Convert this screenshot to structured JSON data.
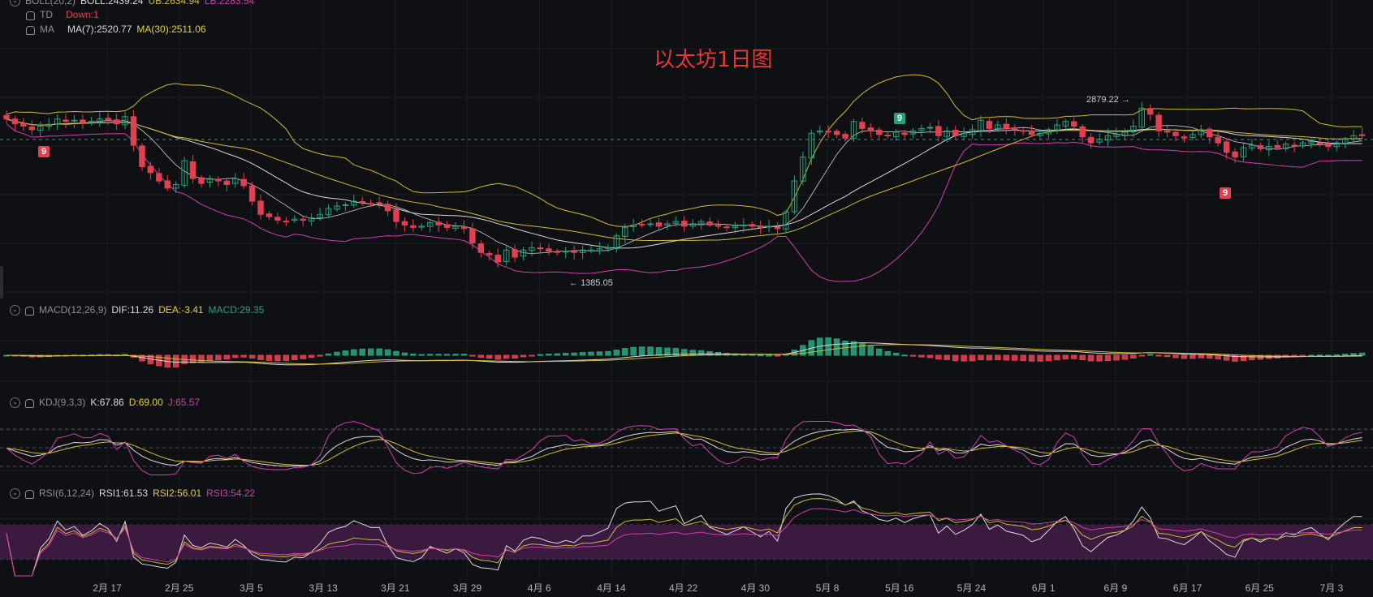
{
  "title": "以太坊1日图",
  "legends": {
    "boll": {
      "name": "BOLL(20,2)",
      "boll": "BOLL:2439.24",
      "ub": "UB:2634.94",
      "lb": "LB:2283.54"
    },
    "td": {
      "name": "TD",
      "down": "Down:1"
    },
    "ma": {
      "name": "MA",
      "ma7": "MA(7):2520.77",
      "ma30": "MA(30):2511.06"
    },
    "macd": {
      "name": "MACD(12,26,9)",
      "dif": "DIF:11.26",
      "dea": "DEA:-3.41",
      "macd": "MACD:29.35"
    },
    "kdj": {
      "name": "KDJ(9,3,3)",
      "k": "K:67.86",
      "d": "D:69.00",
      "j": "J:65.57"
    },
    "rsi": {
      "name": "RSI(6,12,24)",
      "rsi1": "RSI1:61.53",
      "rsi2": "RSI2:56.01",
      "rsi3": "RSI3:54.22"
    }
  },
  "annotations": {
    "high": "2879.22",
    "low": "1385.05",
    "td_marks": [
      "9",
      "9",
      "9"
    ]
  },
  "colors": {
    "up": "#26a17b",
    "down": "#e04050",
    "boll_mid": "#d8d8d8",
    "boll_band": "#d4b83a",
    "lb_band": "#d03fb0",
    "ma7": "#cfcfcf",
    "ma30": "#d4b83a",
    "k": "#dcdcdc",
    "d": "#d4b83a",
    "j": "#d03fb0",
    "rsi_zone": "#3a1a3e",
    "title": "#e53935"
  },
  "chart_data": {
    "type": "candlestick",
    "x_ticks": [
      "2月 17",
      "2月 25",
      "3月 5",
      "3月 13",
      "3月 21",
      "3月 29",
      "4月 6",
      "4月 14",
      "4月 22",
      "4月 30",
      "5月 8",
      "5月 16",
      "5月 24",
      "6月 1",
      "6月 9",
      "6月 17",
      "6月 25",
      "7月 3"
    ],
    "price_close": [
      2700,
      2660,
      2640,
      2610,
      2640,
      2655,
      2700,
      2680,
      2690,
      2670,
      2680,
      2700,
      2690,
      2660,
      2720,
      2480,
      2300,
      2250,
      2180,
      2120,
      2150,
      2350,
      2200,
      2160,
      2200,
      2180,
      2150,
      2200,
      2140,
      2010,
      1900,
      1880,
      1850,
      1840,
      1860,
      1850,
      1870,
      1900,
      1950,
      1970,
      1980,
      2010,
      2000,
      1990,
      1990,
      1930,
      1840,
      1810,
      1790,
      1800,
      1830,
      1810,
      1790,
      1800,
      1780,
      1660,
      1580,
      1560,
      1500,
      1600,
      1540,
      1600,
      1620,
      1610,
      1590,
      1580,
      1590,
      1580,
      1600,
      1600,
      1610,
      1620,
      1720,
      1790,
      1810,
      1810,
      1820,
      1800,
      1820,
      1840,
      1800,
      1820,
      1840,
      1810,
      1800,
      1790,
      1800,
      1810,
      1800,
      1790,
      1800,
      1780,
      1920,
      2180,
      2380,
      2580,
      2600,
      2590,
      2570,
      2540,
      2680,
      2620,
      2600,
      2570,
      2560,
      2590,
      2570,
      2600,
      2620,
      2630,
      2560,
      2600,
      2560,
      2580,
      2610,
      2690,
      2620,
      2650,
      2620,
      2610,
      2600,
      2570,
      2580,
      2610,
      2650,
      2680,
      2640,
      2550,
      2500,
      2530,
      2560,
      2570,
      2590,
      2640,
      2790,
      2740,
      2600,
      2590,
      2560,
      2540,
      2570,
      2610,
      2550,
      2500,
      2420,
      2380,
      2460,
      2480,
      2450,
      2470,
      2460,
      2490,
      2480,
      2500,
      2510,
      2490,
      2470,
      2500,
      2530,
      2560,
      2560
    ],
    "boll_ub_last": 2634.94,
    "boll_mid_last": 2439.24,
    "boll_lb_last": 2283.54,
    "ma7_last": 2520.77,
    "ma30_last": 2511.06,
    "high_label": 2879.22,
    "low_label": 1385.05,
    "macd": {
      "dif": 11.26,
      "dea": -3.41,
      "hist": 29.35
    },
    "kdj": {
      "k": 67.86,
      "d": 69.0,
      "j": 65.57
    },
    "rsi": {
      "rsi1": 61.53,
      "rsi2": 56.01,
      "rsi3": 54.22
    }
  }
}
